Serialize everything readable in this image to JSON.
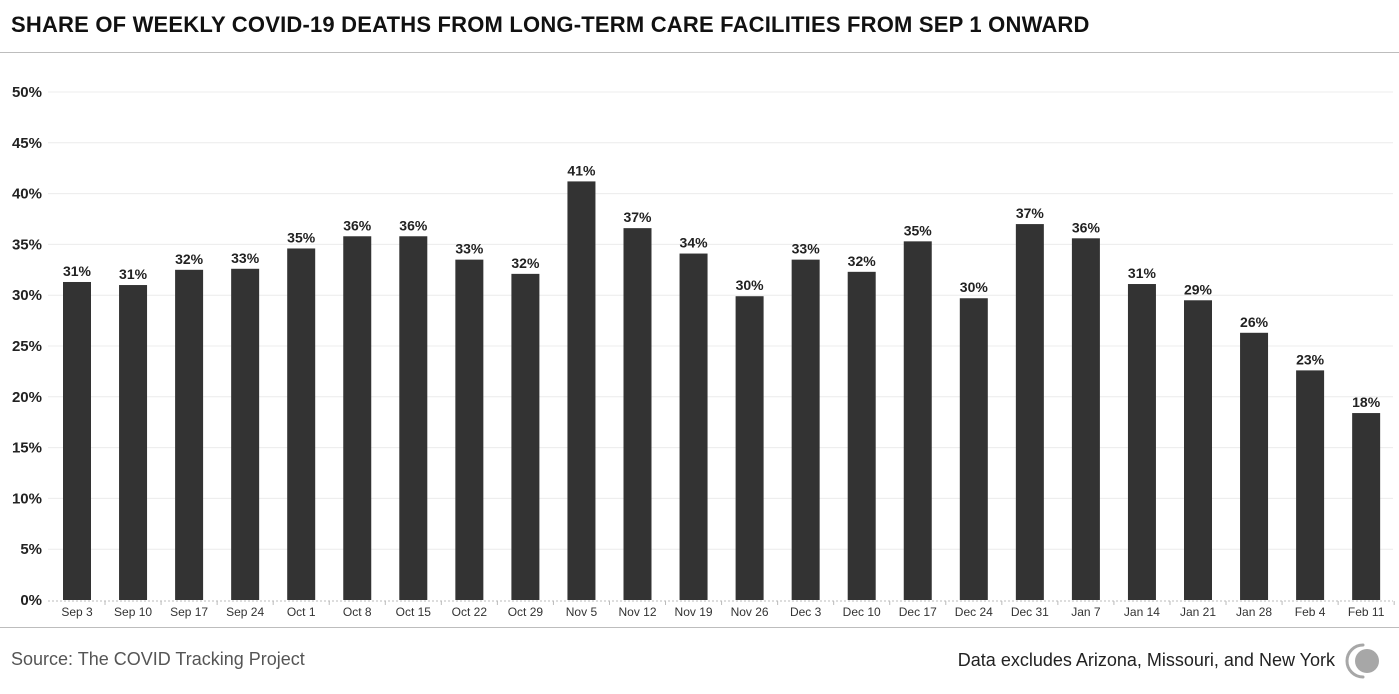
{
  "header": {
    "title": "SHARE OF WEEKLY COVID-19 DEATHS FROM LONG-TERM CARE FACILITIES FROM SEP 1 ONWARD"
  },
  "footer": {
    "source": "Source: The COVID Tracking Project",
    "note": "Data excludes Arizona, Missouri, and New York",
    "logo_icon": "covid-tracking-project-logo"
  },
  "colors": {
    "bar": "#333333",
    "grid": "#ececec",
    "axis": "#bbbbbb",
    "logo": "#a7a7a7"
  },
  "chart_data": {
    "type": "bar",
    "title": "SHARE OF WEEKLY COVID-19 DEATHS FROM LONG-TERM CARE FACILITIES FROM SEP 1 ONWARD",
    "xlabel": "",
    "ylabel": "",
    "ylim": [
      0,
      50
    ],
    "grid": true,
    "yticks": [
      0,
      5,
      10,
      15,
      20,
      25,
      30,
      35,
      40,
      45,
      50
    ],
    "ytick_labels": [
      "0%",
      "5%",
      "10%",
      "15%",
      "20%",
      "25%",
      "30%",
      "35%",
      "40%",
      "45%",
      "50%"
    ],
    "categories": [
      "Sep 3",
      "Sep 10",
      "Sep 17",
      "Sep 24",
      "Oct 1",
      "Oct 8",
      "Oct 15",
      "Oct 22",
      "Oct 29",
      "Nov 5",
      "Nov 12",
      "Nov 19",
      "Nov 26",
      "Dec 3",
      "Dec 10",
      "Dec 17",
      "Dec 24",
      "Dec 31",
      "Jan 7",
      "Jan 14",
      "Jan 21",
      "Jan 28",
      "Feb 4",
      "Feb 11"
    ],
    "values": [
      31.3,
      31.0,
      32.5,
      32.6,
      34.6,
      35.8,
      35.8,
      33.5,
      32.1,
      41.2,
      36.6,
      34.1,
      29.9,
      33.5,
      32.3,
      35.3,
      29.7,
      37.0,
      35.6,
      31.1,
      29.5,
      26.3,
      22.6,
      18.4
    ],
    "data_labels": [
      "31%",
      "31%",
      "32%",
      "33%",
      "35%",
      "36%",
      "36%",
      "33%",
      "32%",
      "41%",
      "37%",
      "34%",
      "30%",
      "33%",
      "32%",
      "35%",
      "30%",
      "37%",
      "36%",
      "31%",
      "29%",
      "26%",
      "23%",
      "18%"
    ],
    "legend": "none"
  }
}
